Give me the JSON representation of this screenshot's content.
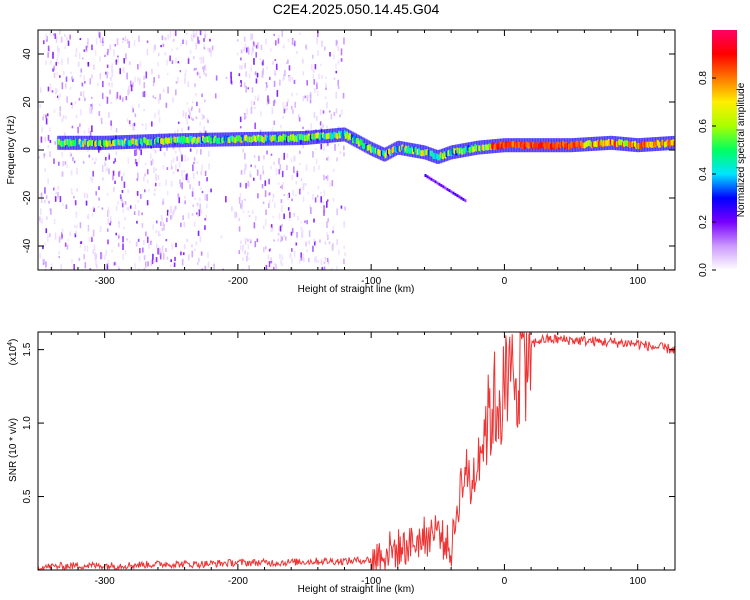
{
  "figure": {
    "title": "C2E4.2025.050.14.45.G04"
  },
  "chart_data": [
    {
      "type": "heatmap",
      "xlabel": "Height of straight line (km)",
      "ylabel": "Frequency (Hz)",
      "xlim": [
        -350,
        128
      ],
      "ylim": [
        -50,
        50
      ],
      "xticks": [
        -300,
        -200,
        -100,
        0,
        100
      ],
      "yticks": [
        -40,
        -20,
        0,
        20,
        40
      ],
      "colorbar": {
        "label": "Normalized spectral amplitude",
        "range": [
          0,
          1
        ],
        "ticks": [
          0.0,
          0.2,
          0.4,
          0.6,
          0.8
        ],
        "colormap": [
          "#ffffff",
          "#cc99ff",
          "#7700ff",
          "#0000ff",
          "#00e5ff",
          "#00ff60",
          "#aaff00",
          "#ffee00",
          "#ff7700",
          "#ff0000",
          "#ff0066"
        ]
      },
      "ridge": {
        "x": [
          -335,
          -300,
          -250,
          -200,
          -150,
          -130,
          -120,
          -100,
          -90,
          -80,
          -70,
          -60,
          -50,
          -40,
          -30,
          -20,
          -10,
          0,
          20,
          50,
          80,
          100,
          128
        ],
        "freq": [
          3,
          3,
          4,
          4.5,
          5,
          6,
          6.5,
          0.5,
          -2,
          1,
          0,
          -1,
          -3,
          -1,
          0,
          1,
          1.5,
          2,
          2,
          2,
          3,
          2,
          3
        ]
      }
    },
    {
      "type": "line",
      "xlabel": "Height of straight line (km)",
      "ylabel": "SNR (10 * v/v)",
      "y_multiplier_label": "(x10",
      "y_multiplier_exp": "4",
      "y_multiplier_close": ")",
      "xlim": [
        -350,
        128
      ],
      "ylim": [
        0,
        1.62
      ],
      "xticks": [
        -300,
        -200,
        -100,
        0,
        100
      ],
      "yticks": [
        0.5,
        1.0,
        1.5
      ],
      "ytick_labels": [
        "0.5",
        "1.0",
        "1.5"
      ],
      "color": "#ee3333",
      "series": [
        {
          "x": [
            -350,
            -320,
            -290,
            -260,
            -230,
            -200,
            -170,
            -140,
            -120,
            -100,
            -90,
            -80,
            -70,
            -60,
            -50,
            -45,
            -40,
            -35,
            -30,
            -25,
            -20,
            -15,
            -10,
            -5,
            0,
            5,
            10,
            15,
            20,
            25,
            30,
            40,
            60,
            80,
            100,
            110,
            120,
            128
          ],
          "y": [
            0.02,
            0.03,
            0.03,
            0.04,
            0.04,
            0.05,
            0.05,
            0.06,
            0.06,
            0.07,
            0.12,
            0.14,
            0.18,
            0.22,
            0.28,
            0.2,
            0.12,
            0.45,
            0.7,
            0.55,
            0.8,
            0.95,
            1.1,
            1.15,
            1.2,
            1.28,
            1.42,
            1.5,
            1.53,
            1.56,
            1.57,
            1.57,
            1.56,
            1.55,
            1.54,
            1.52,
            1.51,
            1.5
          ]
        }
      ]
    }
  ]
}
